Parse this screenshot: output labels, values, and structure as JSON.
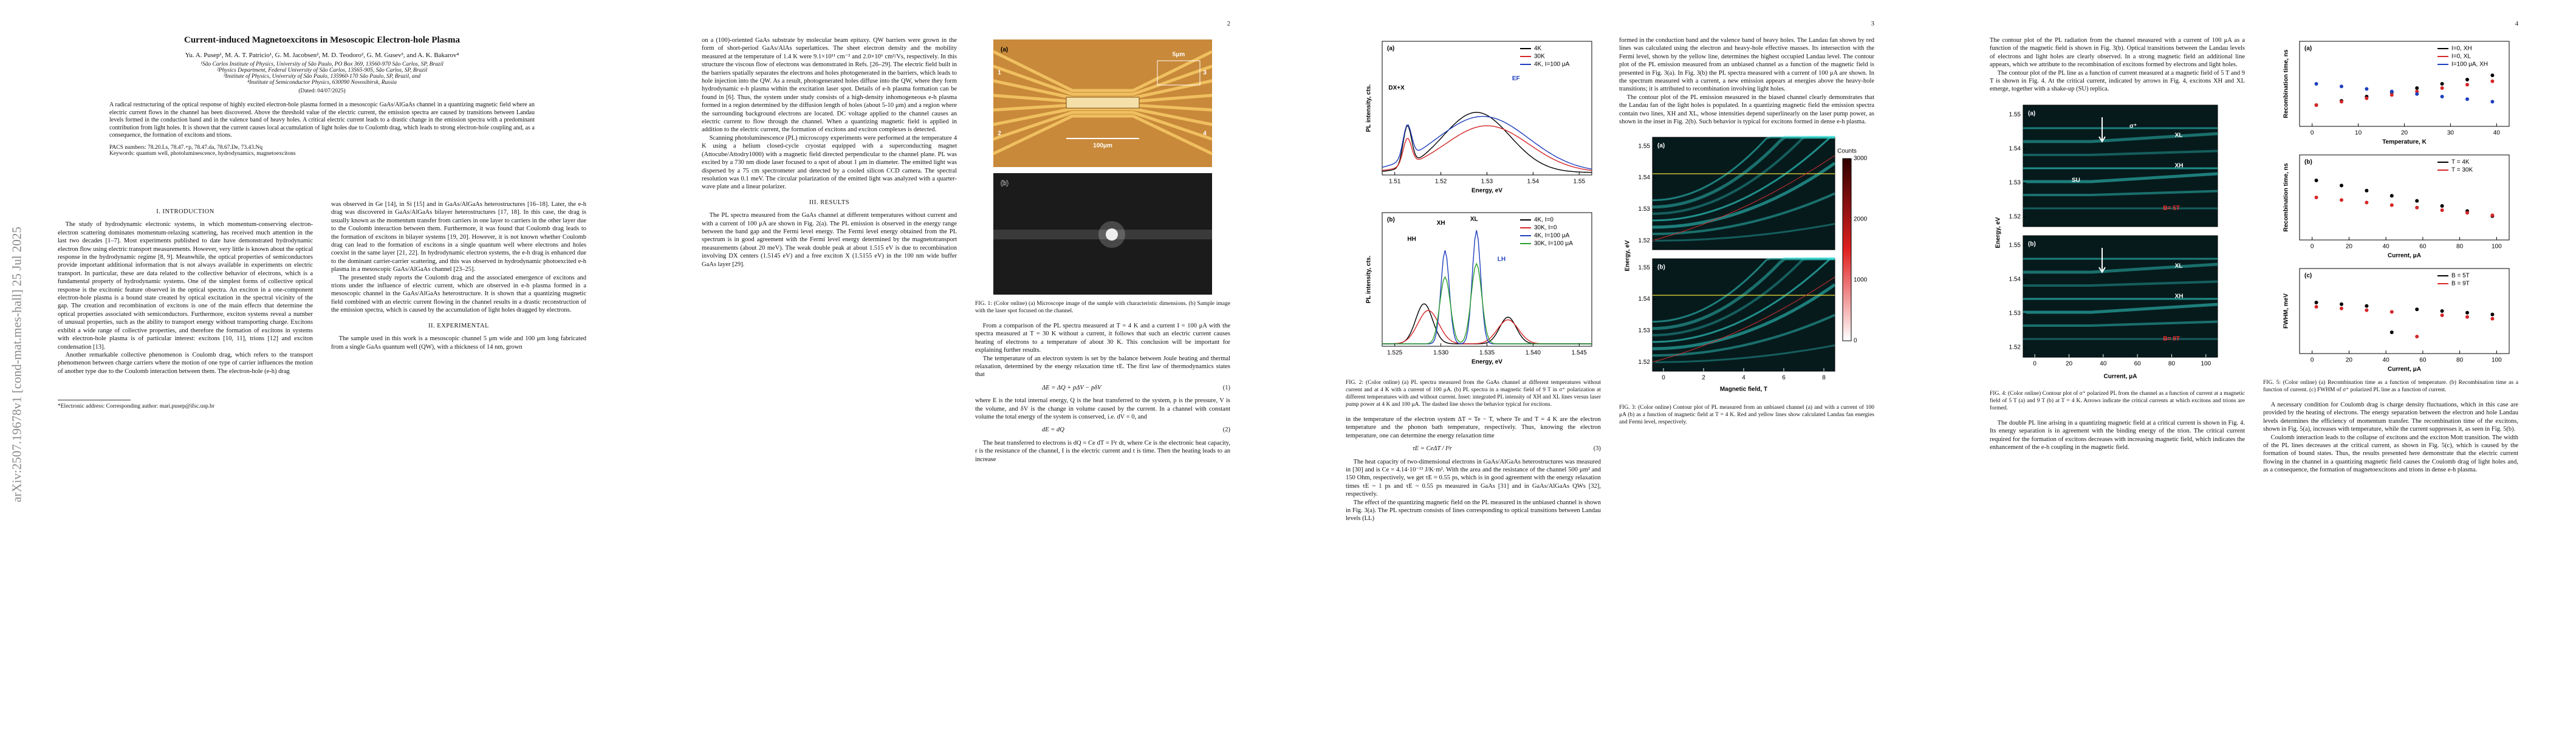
{
  "sidebar": "arXiv:2507.19678v1  [cond-mat.mes-hall]  25 Jul 2025",
  "page1": {
    "title": "Current-induced Magnetoexcitons in Mesoscopic Electron-hole Plasma",
    "authors": "Yu. A. Pusep¹, M. A. T. Patricio¹, G. M. Jacobsen², M. D. Teodoro², G. M. Gusev³, and A. K. Bakarov⁴",
    "affiliations": [
      "¹São Carlos Institute of Physics, University of São Paulo, PO Box 369, 13560-970 São Carlos, SP, Brazil",
      "²Physics Department, Federal University of São Carlos, 13565-905, São Carlos, SP, Brazil",
      "³Institute of Physics, University of São Paulo, 135960-170 São Paulo, SP, Brazil, and",
      "⁴Institute of Semiconductor Physics, 630090 Novosibirsk, Russia"
    ],
    "date": "(Dated: 04/07/2025)",
    "abstract": "A radical restructuring of the optical response of highly excited electron-hole plasma formed in a mesoscopic GaAs/AlGaAs channel in a quantizing magnetic field where an electric current flows in the channel has been discovered. Above the threshold value of the electric current, the emission spectra are caused by transitions between Landau levels formed in the conduction band and in the valence band of heavy holes. A critical electric current leads to a drastic change in the emission spectra with a predominant contribution from light holes. It is shown that the current causes local accumulation of light holes due to Coulomb drag, which leads to strong electron-hole coupling and, as a consequence, the formation of excitons and trions.",
    "pacs": "PACS numbers: 78.20.Ls, 78.47.+p, 78.47.da, 78.67.De, 73.43.Nq",
    "keywords": "Keywords: quantum well, photoluminescence, hydrodynamics, magnetoexcitons",
    "intro_heading": "I.  INTRODUCTION",
    "intro": [
      "The study of hydrodynamic electronic systems, in which momentum-conserving electron-electron scattering dominates momentum-relaxing scattering, has received much attention in the last two decades [1–7]. Most experiments published to date have demonstrated hydrodynamic electron flow using electric transport measurements. However, very little is known about the optical response in the hydrodynamic regime [8, 9]. Meanwhile, the optical properties of semiconductors provide important additional information that is not always available in experiments on electric transport. In particular, these are data related to the collective behavior of electrons, which is a fundamental property of hydrodynamic systems. One of the simplest forms of collective optical response is the excitonic feature observed in the optical spectra. An exciton in a one-component electron-hole plasma is a bound state created by optical excitation in the spectral vicinity of the gap. The creation and recombination of excitons is one of the main effects that determine the optical properties associated with semiconductors. Furthermore, exciton systems reveal a number of unusual properties, such as the ability to transport energy without transporting charge. Excitons exhibit a wide range of collective properties, and therefore the formation of excitons in systems with electron-hole plasma is of particular interest: excitons [10, 11], trions [12] and exciton condensation [13].",
      "Another remarkable collective phenomenon is Coulomb drag, which refers to the transport phenomenon between charge carriers where the motion of one type of carrier influences the motion of another type due to the Coulomb interaction between them. The electron-hole (e-h) drag"
    ],
    "right": [
      "was observed in Ge [14], in Si [15] and in GaAs/AlGaAs heterostructures [16–18]. Later, the e-h drag was discovered in GaAs/AlGaAs bilayer heterostructures [17, 18]. In this case, the drag is usually known as the momentum transfer from carriers in one layer to carriers in the other layer due to the Coulomb interaction between them. Furthermore, it was found that Coulomb drag leads to the formation of excitons in bilayer systems [19, 20]. However, it is not known whether Coulomb drag can lead to the formation of excitons in a single quantum well where electrons and holes coexist in the same layer [21, 22]. In hydrodynamic electron systems, the e-h drag is enhanced due to the dominant carrier-carrier scattering, and this was observed in hydrodynamic photoexcited e-h plasma in a mesoscopic GaAs/AlGaAs channel [23–25].",
      "The presented study reports the Coulomb drag and the associated emergence of excitons and trions under the influence of electric current, which are observed in e-h plasma formed in a mesoscopic channel in the GaAs/AlGaAs heterostructure. It is shown that a quantizing magnetic field combined with an electric current flowing in the channel results in a drastic reconstruction of the emission spectra, which is caused by the accumulation of light holes dragged by electrons."
    ],
    "experimental_heading": "II.  EXPERIMENTAL",
    "experimental": "The sample used in this work is a mesoscopic channel 5 μm wide and 100 μm long fabricated from a single GaAs quantum well (QW), with a thickness of 14 nm, grown",
    "footnote": "*Electronic address: Corresponding author: mari.pusep@ifsc.usp.br"
  },
  "page2": {
    "number": "2",
    "left": [
      "on a (100)-oriented GaAs substrate by molecular beam epitaxy. QW barriers were grown in the form of short-period GaAs/AlAs superlattices. The sheet electron density and the mobility measured at the temperature of 1.4 K were 9.1×10¹¹ cm⁻² and 2.0×10⁶ cm²/Vs, respectively. In this structure the viscous flow of electrons was demonstrated in Refs. [26–29]. The electric field built in the barriers spatially separates the electrons and holes photogenerated in the barriers, which leads to hole injection into the QW. As a result, photogenerated holes diffuse into the QW, where they form hydrodynamic e-h plasma within the excitation laser spot. Details of e-h plasma formation can be found in [6]. Thus, the system under study consists of a high-density inhomogeneous e-h plasma formed in a region determined by the diffusion length of holes (about 5-10 μm) and a region where the surrounding background electrons are located. DC voltage applied to the channel causes an electric current to flow through the channel. When a quantizing magnetic field is applied in addition to the electric current, the formation of excitons and exciton complexes is detected.",
      "Scanning photoluminescence (PL) microscopy experiments were performed at the temperature 4 K using a helium closed-cycle cryostat equipped with a superconducting magnet (Attocube/Attodry1000) with a magnetic field directed perpendicular to the channel plane. PL was excited by a 730 nm diode laser focused to a spot of about 1 μm in diameter. The emitted light was dispersed by a 75 cm spectrometer and detected by a cooled silicon CCD camera. The spectral resolution was 0.1 meV. The circular polarization of the emitted light was analyzed with a quarter-wave plate and a linear polarizer."
    ],
    "results_heading": "III.  RESULTS",
    "results": [
      "The PL spectra measured from the GaAs channel at different temperatures without current and with a current of 100 μA are shown in Fig. 2(a). The PL emission is observed in the energy range between the band gap and the Fermi level energy. The Fermi level energy obtained from the PL spectrum is in good agreement with the Fermi level energy determined by the magnetotransport measurements (about 20 meV). The weak double peak at about 1.515 eV is due to recombination involving DX centers (1.5145 eV) and a free exciton X (1.5155 eV) in the 100 nm wide buffer GaAs layer [29]."
    ],
    "fig1": {
      "labels": [
        "(a)",
        "(b)"
      ],
      "scale": [
        "5μm",
        "100μm"
      ],
      "contacts": [
        "1",
        "2",
        "3",
        "4"
      ],
      "caption": "FIG. 1: (Color online) (a) Microscope image of the sample with characteristic dimensions. (b) Sample image with the laser spot focused on the channel."
    },
    "right": [
      "From a comparison of the PL spectra measured at T = 4 K and a current I = 100 μA with the spectra measured at T = 30 K without a current, it follows that such an electric current causes heating of electrons to a temperature of about 30 K. This conclusion will be important for explaining further results.",
      "The temperature of an electron system is set by the balance between Joule heating and thermal relaxation, determined by the energy relaxation time τE. The first law of thermodynamics states that"
    ],
    "eq1": "ΔE = ΔQ + pΔV − pδV",
    "eq1_number": "(1)",
    "between": "where E is the total internal energy, Q is the heat transferred to the system, p is the pressure, V is the volume, and δV is the change in volume caused by the current. In a channel with constant volume the total energy of the system is conserved, i.e. dV = 0, and",
    "eq2": "dE = dQ",
    "eq2_number": "(2)",
    "after": "The heat transferred to electrons is dQ = Ce dT = I²r dt, where Ce is the electronic heat capacity, r is the resistance of the channel, I is the electric current and t is time. Then the heating leads to an increase"
  },
  "page3": {
    "number": "3",
    "fig2": {
      "a": {
        "label": "(a)",
        "xlabel": "Energy, eV",
        "ylabel": "PL intensity, cts.",
        "xticks": [
          "1.51",
          "1.52",
          "1.53",
          "1.54",
          "1.55"
        ],
        "legend": [
          "4K",
          "30K",
          "4K, I=100 μA"
        ],
        "notes": [
          "DX+X",
          "EF"
        ]
      },
      "b": {
        "label": "(b)",
        "xlabel": "Energy, eV",
        "ylabel": "PL intensity, cts.",
        "xticks": [
          "1.525",
          "1.530",
          "1.535",
          "1.540",
          "1.545"
        ],
        "legend": [
          "4K, I=0",
          "30K, I=0",
          "4K, I=100 μA",
          "30K, I=100 μA"
        ],
        "notes": [
          "HH",
          "LH",
          "XH",
          "XL"
        ]
      },
      "caption": "FIG. 2: (Color online) (a) PL spectra measured from the GaAs channel at different temperatures without current and at 4 K with a current of 100 μA. (b) PL spectra in a magnetic field of 9 T in σ⁺ polarization at different temperatures with and without current. Inset: integrated PL intensity of XH and XL lines versus laser pump power at 4 K and 100 μA. The dashed line shows the behavior typical for excitons."
    },
    "left": [
      "in the temperature of the electron system ΔT = Te − T, where Te and T = 4 K are the electron temperature and the phonon bath temperature, respectively. Thus, knowing the electron temperature, one can determine the energy relaxation time"
    ],
    "eq3": "τE = CeΔT / I²r",
    "eq3_number": "(3)",
    "left_after": [
      "The heat capacity of two-dimensional electrons in GaAs/AlGaAs heterostructures was measured in [30] and is Ce = 4.14·10⁻¹³ J/K·m². With the area and the resistance of the channel 500 μm² and 150 Ohm, respectively, we get τE ≈ 0.55 ps, which is in good agreement with the energy relaxation times τE ~ 1 ps and τE ~ 0.55 ps measured in GaAs [31] and in GaAs/AlGaAs QWs [32], respectively.",
      "The effect of the quantizing magnetic field on the PL measured in the unbiased channel is shown in Fig. 3(a). The PL spectrum consists of lines corresponding to optical transitions between Landau levels (LL)"
    ],
    "right": [
      "formed in the conduction band and the valence band of heavy holes. The Landau fan shown by red lines was calculated using the electron and heavy-hole effective masses. Its intersection with the Fermi level, shown by the yellow line, determines the highest occupied Landau level. The contour plot of the PL emission measured from an unbiased channel as a function of the magnetic field is presented in Fig. 3(a). In Fig. 3(b) the PL spectra measured with a current of 100 μA are shown. In the spectrum measured with a current, a new emission appears at energies above the heavy-hole transitions; it is attributed to recombination involving light holes.",
      "The contour plot of the PL emission measured in the biased channel clearly demonstrates that the Landau fan of the light holes is populated. In a quantizing magnetic field the emission spectra contain two lines, XH and XL, whose intensities depend superlinearly on the laser pump power, as shown in the inset in Fig. 2(b). Such behavior is typical for excitons formed in dense e-h plasma."
    ],
    "fig3": {
      "labels": [
        "(a)",
        "(b)"
      ],
      "ylabel": "Energy, eV",
      "xlabel": "Magnetic field, T",
      "yticks": [
        "1.52",
        "1.53",
        "1.54",
        "1.55"
      ],
      "xticks": [
        "0",
        "2",
        "4",
        "6",
        "8"
      ],
      "colorbar_label": "Counts",
      "colorbar_ticks": [
        "0",
        "1000",
        "2000",
        "3000"
      ],
      "caption": "FIG. 3: (Color online) Contour plot of PL measured from an unbiased channel (a) and with a current of 100 μA (b) as a function of magnetic field at T = 4 K. Red and yellow lines show calculated Landau fan energies and Fermi level, respectively."
    }
  },
  "page4": {
    "number": "4",
    "left": [
      "The contour plot of the PL radiation from the channel measured with a current of 100 μA as a function of the magnetic field is shown in Fig. 3(b). Optical transitions between the Landau levels of electrons and light holes are clearly observed. In a strong magnetic field an additional line appears, which we attribute to the recombination of excitons formed by electrons and light holes.",
      "The contour plot of the PL line as a function of current measured at a magnetic field of 5 T and 9 T is shown in Fig. 4. At the critical current, indicated by arrows in Fig. 4, excitons XH and XL emerge, together with a shake-up (SU) replica."
    ],
    "fig4": {
      "labels": [
        "(a)",
        "(b)"
      ],
      "sigma": "σ⁺",
      "notes_a": [
        "XL",
        "XH",
        "SU",
        "B= 5T"
      ],
      "notes_b": [
        "XL",
        "XH",
        "B= 9T"
      ],
      "ylabel": "Energy, eV",
      "xlabel": "Current, μA",
      "yticks": [
        "1.52",
        "1.53",
        "1.54",
        "1.55"
      ],
      "xticks": [
        "0",
        "20",
        "40",
        "60",
        "80",
        "100"
      ],
      "caption": "FIG. 4: (Color online) Contour plot of σ⁺ polarized PL from the channel as a function of current at a magnetic field of 5 T (a) and 9 T (b) at T = 4 K. Arrows indicate the critical currents at which excitons and trions are formed."
    },
    "left_after": [
      "The double PL line arising in a quantizing magnetic field at a critical current is shown in Fig. 4. Its energy separation is in agreement with the binding energy of the trion. The critical current required for the formation of excitons decreases with increasing magnetic field, which indicates the enhancement of the e-h coupling in the magnetic field."
    ],
    "fig5": {
      "a": {
        "label": "(a)",
        "xlabel": "Temperature, K",
        "ylabel": "Recombination time, ns",
        "xticks": [
          "0",
          "10",
          "20",
          "30",
          "40"
        ],
        "legend": [
          "I=0, XH",
          "I=0, XL",
          "I=100 μA, XH"
        ]
      },
      "b": {
        "label": "(b)",
        "xlabel": "Current, μA",
        "ylabel": "Recombination time, ns",
        "xticks": [
          "0",
          "20",
          "40",
          "60",
          "80",
          "100"
        ],
        "legend": [
          "T = 4K",
          "T = 30K"
        ]
      },
      "c": {
        "label": "(c)",
        "xlabel": "Current, μA",
        "ylabel": "FWHM, meV",
        "xticks": [
          "0",
          "20",
          "40",
          "60",
          "80",
          "100"
        ],
        "legend": [
          "B = 5T",
          "B = 9T"
        ]
      },
      "caption": "FIG. 5: (Color online) (a) Recombination time as a function of temperature. (b) Recombination time as a function of current. (c) FWHM of σ⁺ polarized PL line as a function of current."
    },
    "right": [
      "A necessary condition for Coulomb drag is charge density fluctuations, which in this case are provided by the heating of electrons. The energy separation between the electron and hole Landau levels determines the efficiency of momentum transfer. The recombination time of the excitons, shown in Fig. 5(a), increases with temperature, while the current suppresses it, as seen in Fig. 5(b).",
      "Coulomb interaction leads to the collapse of excitons and the exciton Mott transition. The width of the PL lines decreases at the critical current, as shown in Fig. 5(c), which is caused by the formation of bound states. Thus, the results presented here demonstrate that the electric current flowing in the channel in a quantizing magnetic field causes the Coulomb drag of light holes and, as a consequence, the formation of magnetoexcitons and trions in dense e-h plasma."
    ]
  }
}
